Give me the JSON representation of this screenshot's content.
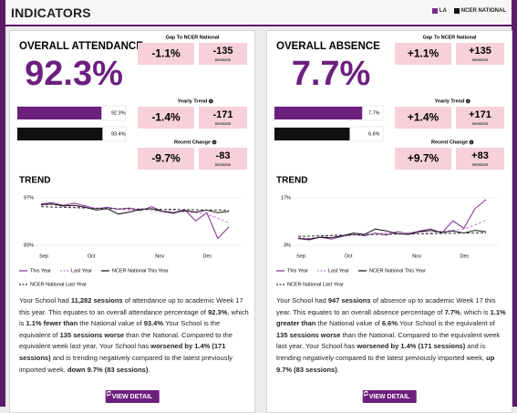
{
  "header": {
    "title": "INDICATORS",
    "legend": [
      {
        "name": "LA",
        "color": "#7b2d8e"
      },
      {
        "name": "NCER NATIONAL",
        "color": "#111111"
      }
    ]
  },
  "cards": [
    {
      "title": "OVERALL ATTENDANCE",
      "headline": "92.3%",
      "headline_color": "#6d1f7e",
      "bar_chart": {
        "type": "bar",
        "xlim": [
          0,
          100
        ],
        "values": [
          92.3,
          93.4
        ],
        "value_labels": [
          "92.3%",
          "93.4%"
        ],
        "colors": [
          "#6d1f7e",
          "#111111"
        ]
      },
      "metrics": [
        {
          "label": "Gap To NCER National",
          "info": false,
          "percent": "-1.1%",
          "sessions": "-135",
          "unit": "sessions"
        },
        {
          "label": "Yearly Trend",
          "info": true,
          "percent": "-1.4%",
          "sessions": "-171",
          "unit": "sessions"
        },
        {
          "label": "Recent Change",
          "info": true,
          "percent": "-9.7%",
          "sessions": "-83",
          "unit": "sessions"
        }
      ],
      "trend": {
        "title": "TREND",
        "type": "line",
        "ylim": [
          83,
          97
        ],
        "yticks": [
          {
            "value": 97,
            "label": "97%"
          },
          {
            "value": 83,
            "label": "83%"
          }
        ],
        "xtick_labels": [
          "Sep",
          "Oct",
          "Nov",
          "Dec"
        ],
        "series": [
          {
            "name": "This Year",
            "color": "#7b2d8e",
            "dashed": false,
            "values": [
              95.2,
              95.6,
              94.8,
              95.4,
              94.6,
              93.8,
              94.2,
              93.6,
              94.0,
              93.2,
              94.4,
              93.0,
              92.4,
              93.6,
              90.2,
              92.6,
              85.0,
              88.4
            ]
          },
          {
            "name": "Last Year",
            "color": "#c77dd6",
            "dashed": true,
            "values": [
              94.8,
              95.0,
              94.6,
              94.2,
              94.4,
              94.0,
              93.8,
              93.6,
              93.4,
              93.6,
              93.2,
              93.0,
              93.4,
              92.8,
              92.6,
              92.2,
              91.0,
              89.6
            ]
          },
          {
            "name": "NCER National This Year",
            "color": "#111111",
            "dashed": false,
            "values": [
              95.0,
              95.2,
              94.6,
              94.8,
              94.2,
              93.4,
              93.8,
              92.2,
              92.8,
              93.6,
              93.8,
              93.0,
              92.6,
              93.2,
              92.8,
              93.4,
              92.6,
              93.0
            ]
          },
          {
            "name": "NCER National Last Year",
            "color": "#333333",
            "dashed": true,
            "values": [
              94.4,
              94.3,
              94.2,
              94.1,
              94.0,
              93.9,
              93.9,
              93.8,
              93.8,
              93.7,
              93.7,
              93.6,
              93.6,
              93.5,
              93.5,
              93.4,
              93.4,
              93.3
            ]
          }
        ]
      },
      "paragraph": [
        {
          "text": "Your School had ",
          "bold": false
        },
        {
          "text": "11,282 sessions",
          "bold": true
        },
        {
          "text": " of attendance up to academic Week 17 this year. This equates to an overall attendance percentage of ",
          "bold": false
        },
        {
          "text": "92.3%",
          "bold": true
        },
        {
          "text": ", which is ",
          "bold": false
        },
        {
          "text": "1.1% fewer than",
          "bold": true
        },
        {
          "text": " the National value of ",
          "bold": false
        },
        {
          "text": "93.4%",
          "bold": true
        },
        {
          "text": ".Your School is the equivalent of ",
          "bold": false
        },
        {
          "text": "135 sessions worse",
          "bold": true
        },
        {
          "text": " than the National. Compared to the equivalent week last year, Your School has ",
          "bold": false
        },
        {
          "text": "worsened by 1.4% (171 sessions)",
          "bold": true
        },
        {
          "text": " and is trending negatively compared to the latest previously imported week, ",
          "bold": false
        },
        {
          "text": "down 9.7% (83 sessions)",
          "bold": true
        },
        {
          "text": ".",
          "bold": false
        }
      ],
      "button": "VIEW DETAIL"
    },
    {
      "title": "OVERALL ABSENCE",
      "headline": "7.7%",
      "headline_color": "#6d1f7e",
      "bar_chart": {
        "type": "bar",
        "xlim": [
          0,
          8
        ],
        "values": [
          7.7,
          6.6
        ],
        "value_labels": [
          "7.7%",
          "6.6%"
        ],
        "colors": [
          "#6d1f7e",
          "#111111"
        ]
      },
      "metrics": [
        {
          "label": "Gap To NCER National",
          "info": false,
          "percent": "+1.1%",
          "sessions": "+135",
          "unit": "sessions"
        },
        {
          "label": "Yearly Trend",
          "info": true,
          "percent": "+1.4%",
          "sessions": "+171",
          "unit": "sessions"
        },
        {
          "label": "Recent Change",
          "info": true,
          "percent": "+9.7%",
          "sessions": "+83",
          "unit": "sessions"
        }
      ],
      "trend": {
        "title": "TREND",
        "type": "line",
        "ylim": [
          3,
          17
        ],
        "yticks": [
          {
            "value": 17,
            "label": "17%"
          },
          {
            "value": 3,
            "label": "3%"
          }
        ],
        "xtick_labels": [
          "Sep",
          "Oct",
          "Nov",
          "Dec"
        ],
        "series": [
          {
            "name": "This Year",
            "color": "#7b2d8e",
            "dashed": false,
            "values": [
              5.0,
              4.6,
              5.4,
              4.8,
              5.6,
              6.2,
              5.8,
              6.6,
              6.0,
              7.0,
              6.4,
              7.2,
              7.8,
              6.6,
              10.2,
              8.0,
              13.8,
              16.5
            ]
          },
          {
            "name": "Last Year",
            "color": "#c77dd6",
            "dashed": true,
            "values": [
              5.2,
              5.0,
              5.4,
              5.8,
              5.6,
              6.0,
              6.2,
              6.4,
              6.6,
              6.4,
              6.8,
              7.0,
              6.6,
              7.2,
              7.4,
              7.8,
              9.0,
              10.4
            ]
          },
          {
            "name": "NCER National This Year",
            "color": "#111111",
            "dashed": false,
            "values": [
              5.0,
              4.8,
              5.4,
              5.2,
              5.8,
              6.6,
              6.2,
              7.8,
              7.2,
              6.4,
              6.2,
              7.0,
              7.4,
              6.8,
              7.2,
              6.6,
              7.4,
              7.0
            ]
          },
          {
            "name": "NCER National Last Year",
            "color": "#333333",
            "dashed": true,
            "values": [
              5.6,
              5.7,
              5.8,
              5.9,
              6.0,
              6.1,
              6.1,
              6.2,
              6.2,
              6.3,
              6.3,
              6.4,
              6.4,
              6.5,
              6.5,
              6.6,
              6.6,
              6.7
            ]
          }
        ]
      },
      "paragraph": [
        {
          "text": "Your School had ",
          "bold": false
        },
        {
          "text": "947 sessions",
          "bold": true
        },
        {
          "text": " of absence up to academic Week 17 this year. This equates to an overall absence percentage of ",
          "bold": false
        },
        {
          "text": "7.7%",
          "bold": true
        },
        {
          "text": ", which is ",
          "bold": false
        },
        {
          "text": "1.1% greater than",
          "bold": true
        },
        {
          "text": " the National value of ",
          "bold": false
        },
        {
          "text": "6.6%",
          "bold": true
        },
        {
          "text": ".Your School is the equivalent of ",
          "bold": false
        },
        {
          "text": "135 sessions worse",
          "bold": true
        },
        {
          "text": " than the National. Compared to the equivalent week last year, Your School has ",
          "bold": false
        },
        {
          "text": "worsened by 1.4% (171 sessions)",
          "bold": true
        },
        {
          "text": " and is trending negatively compared to the latest previously imported week, ",
          "bold": false
        },
        {
          "text": "up 9.7% (83 sessions)",
          "bold": true
        },
        {
          "text": ".",
          "bold": false
        }
      ],
      "button": "VIEW DETAIL"
    }
  ]
}
